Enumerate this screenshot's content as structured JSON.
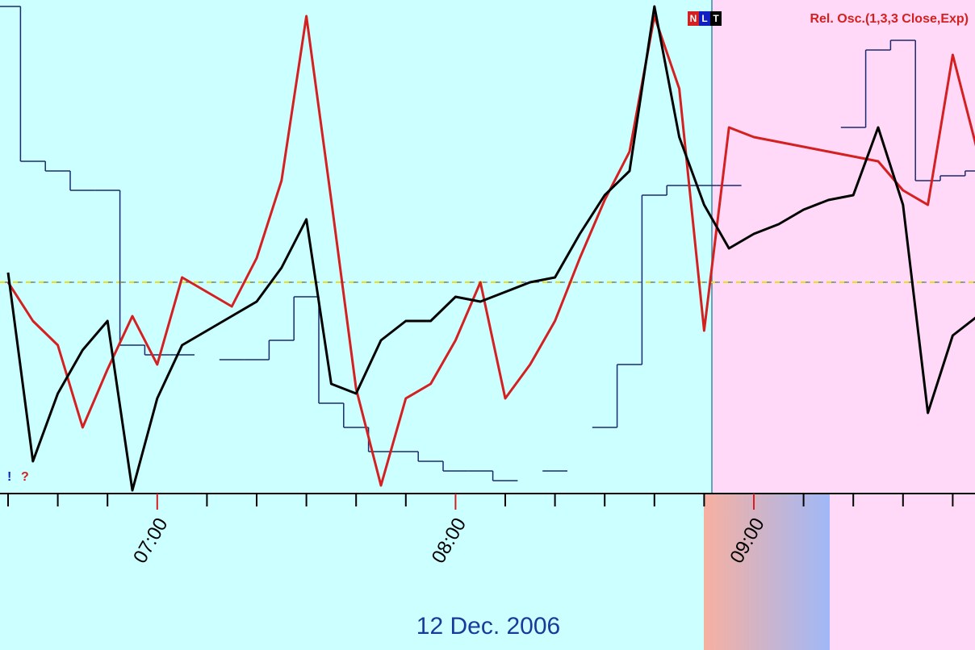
{
  "chart_data": {
    "type": "line",
    "title": "Rel. Osc.(1,3,3 Close,Exp)",
    "indicator_buttons": [
      "N",
      "L",
      "T"
    ],
    "markers": [
      "!",
      "?"
    ],
    "date_label": "12 Dec. 2006",
    "categories": [
      null,
      null,
      null,
      null,
      null,
      null,
      "07:00",
      null,
      null,
      null,
      null,
      null,
      null,
      null,
      null,
      null,
      null,
      null,
      "08:00",
      null,
      null,
      null,
      null,
      null,
      null,
      null,
      null,
      null,
      null,
      null,
      "09:00",
      null,
      null,
      null,
      null,
      null,
      null,
      null,
      null,
      null
    ],
    "ylim": [
      0,
      100
    ],
    "reference_line": 43,
    "series": [
      {
        "color": "#d42020",
        "style": "line",
        "values": [
          43,
          35,
          30,
          13,
          25,
          36,
          26,
          44,
          41,
          38,
          48,
          64,
          98,
          60,
          21,
          1,
          19,
          22,
          31,
          43,
          19,
          26,
          35,
          48,
          60,
          70,
          98,
          83,
          33,
          75,
          73,
          72,
          71,
          70,
          69,
          68,
          62,
          59,
          90,
          70
        ]
      },
      {
        "color": "#000000",
        "style": "line",
        "values": [
          45,
          6,
          20,
          29,
          35,
          0,
          19,
          30,
          33,
          36,
          39,
          46,
          56,
          22,
          20,
          31,
          35,
          35,
          40,
          39,
          41,
          43,
          44,
          53,
          61,
          66,
          100,
          73,
          59,
          50,
          53,
          55,
          58,
          60,
          61,
          75,
          59,
          16,
          32,
          36
        ]
      },
      {
        "color": "#1c2a70",
        "style": "step",
        "values": [
          100,
          68,
          66,
          62,
          62,
          30,
          28,
          28,
          null,
          27,
          27,
          31,
          40,
          18,
          13,
          8,
          8,
          6,
          4,
          4,
          2,
          null,
          4,
          null,
          13,
          26,
          61,
          63,
          63,
          63,
          null,
          null,
          null,
          null,
          75,
          91,
          93,
          64,
          65,
          66
        ]
      }
    ]
  }
}
